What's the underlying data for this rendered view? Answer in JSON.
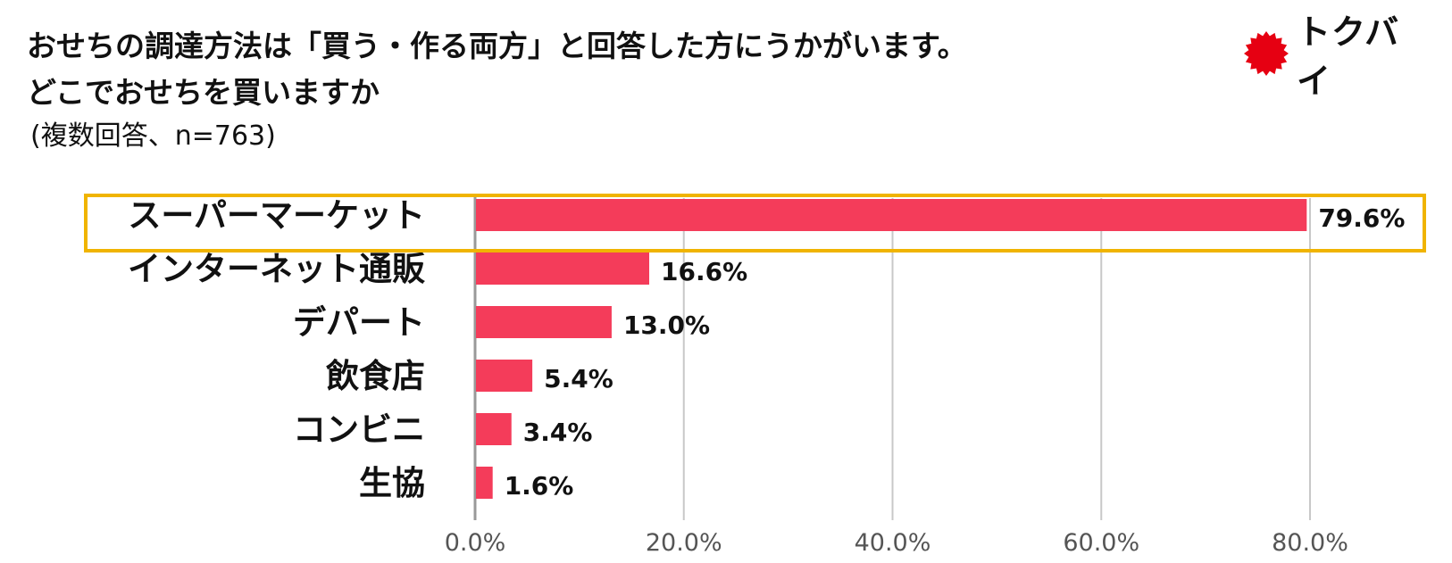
{
  "header": {
    "title_line1": "おせちの調達方法は「買う・作る両方」と回答した方にうかがいます。",
    "title_line2": "どこでおせちを買いますか",
    "subtitle": "(複数回答、n=763)"
  },
  "logo": {
    "text": "トクバイ",
    "icon": "red-starburst-icon",
    "color": "#e60012"
  },
  "colors": {
    "bar": "#f43c5a",
    "highlight": "#f0b400",
    "grid": "#c8c8c8",
    "axis": "#999999"
  },
  "chart_data": {
    "type": "bar",
    "orientation": "horizontal",
    "categories": [
      "スーパーマーケット",
      "インターネット通販",
      "デパート",
      "飲食店",
      "コンビニ",
      "生協"
    ],
    "values": [
      79.6,
      16.6,
      13.0,
      5.4,
      3.4,
      1.6
    ],
    "value_labels": [
      "79.6%",
      "16.6%",
      "13.0%",
      "5.4%",
      "3.4%",
      "1.6%"
    ],
    "x_ticks": [
      "0.0%",
      "20.0%",
      "40.0%",
      "60.0%",
      "80.0%"
    ],
    "xlim": [
      0,
      80
    ],
    "grid": true,
    "highlighted_category": "スーパーマーケット"
  }
}
